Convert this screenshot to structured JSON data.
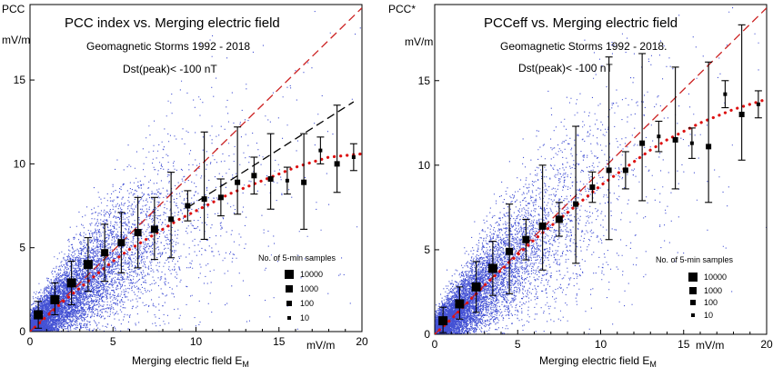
{
  "chart_data": [
    {
      "type": "scatter",
      "title": "PCC index vs. Merging electric field",
      "subtitle1": "Geomagnetic Storms 1992 - 2018",
      "subtitle2": "Dst(peak)< -100 nT",
      "ylabel": "PCC",
      "yunit": "mV/m",
      "xlabel_main": "Merging electric field  E",
      "xlabel_sub": "M",
      "xunit": "mV/m",
      "xlim": [
        0,
        20
      ],
      "ylim": [
        0,
        19.5
      ],
      "xticks": [
        0,
        5,
        10,
        15,
        20
      ],
      "yticks": [
        0,
        5,
        10,
        15
      ],
      "colors": {
        "scatter": "#2233cc",
        "linear_fit": "#cc2222",
        "saturation_fit": "#dd1111",
        "alt_fit": "#000000"
      },
      "legend": {
        "title": "No. of 5-min samples",
        "entries": [
          "10000",
          "1000",
          "100",
          "10"
        ],
        "marker_sizes": [
          10,
          8,
          6,
          4
        ]
      },
      "binned_means": [
        {
          "x": 0.5,
          "y": 1.0,
          "lo": 0.2,
          "hi": 1.8,
          "n": 10000
        },
        {
          "x": 1.5,
          "y": 1.9,
          "lo": 1.0,
          "hi": 2.9,
          "n": 10000
        },
        {
          "x": 2.5,
          "y": 2.9,
          "lo": 1.6,
          "hi": 4.2,
          "n": 10000
        },
        {
          "x": 3.5,
          "y": 4.0,
          "lo": 2.4,
          "hi": 5.6,
          "n": 10000
        },
        {
          "x": 4.5,
          "y": 4.7,
          "lo": 3.0,
          "hi": 6.4,
          "n": 1000
        },
        {
          "x": 5.5,
          "y": 5.3,
          "lo": 3.5,
          "hi": 7.1,
          "n": 1000
        },
        {
          "x": 6.5,
          "y": 5.9,
          "lo": 3.8,
          "hi": 8.0,
          "n": 1000
        },
        {
          "x": 7.5,
          "y": 6.1,
          "lo": 4.3,
          "hi": 8.0,
          "n": 1000
        },
        {
          "x": 8.5,
          "y": 6.7,
          "lo": 4.4,
          "hi": 9.5,
          "n": 100
        },
        {
          "x": 9.5,
          "y": 7.5,
          "lo": 6.6,
          "hi": 8.4,
          "n": 100
        },
        {
          "x": 10.5,
          "y": 7.9,
          "lo": 5.5,
          "hi": 11.9,
          "n": 100
        },
        {
          "x": 11.5,
          "y": 8.0,
          "lo": 6.9,
          "hi": 9.1,
          "n": 100
        },
        {
          "x": 12.5,
          "y": 8.9,
          "lo": 7.0,
          "hi": 12.2,
          "n": 100
        },
        {
          "x": 13.5,
          "y": 9.3,
          "lo": 8.2,
          "hi": 10.4,
          "n": 100
        },
        {
          "x": 14.5,
          "y": 9.1,
          "lo": 7.3,
          "hi": 11.8,
          "n": 100
        },
        {
          "x": 15.5,
          "y": 9.0,
          "lo": 8.2,
          "hi": 9.8,
          "n": 10
        },
        {
          "x": 16.5,
          "y": 8.9,
          "lo": 6.1,
          "hi": 11.8,
          "n": 100
        },
        {
          "x": 17.5,
          "y": 10.8,
          "lo": 10.0,
          "hi": 11.6,
          "n": 10
        },
        {
          "x": 18.5,
          "y": 10.0,
          "lo": 8.3,
          "hi": 13.5,
          "n": 100
        },
        {
          "x": 19.5,
          "y": 10.4,
          "lo": 9.6,
          "hi": 11.2,
          "n": 10
        }
      ],
      "linear_fit": {
        "x": [
          0,
          20
        ],
        "y": [
          0,
          19.3
        ]
      },
      "alt_fit": {
        "x": [
          9.5,
          19.5
        ],
        "y": [
          7.4,
          13.7
        ]
      },
      "saturation_fit": {
        "x": [
          0,
          1,
          2,
          3,
          4,
          5,
          6,
          7,
          8,
          9,
          10,
          11,
          12,
          13,
          14,
          15,
          16,
          17,
          18,
          19,
          20
        ],
        "y": [
          0,
          0.9,
          1.8,
          2.6,
          3.4,
          4.2,
          4.9,
          5.5,
          6.1,
          6.7,
          7.2,
          7.7,
          8.2,
          8.6,
          9.0,
          9.4,
          9.8,
          10.1,
          10.4,
          10.5,
          10.6
        ]
      }
    },
    {
      "type": "scatter",
      "title": "PCCeff vs. Merging electric field",
      "subtitle1": "Geomagnetic Storms 1992 - 2018.",
      "subtitle2": "Dst(peak)< -100 nT",
      "ylabel": "PCC*",
      "yunit": "mV/m",
      "xlabel_main": "Merging electric field  E",
      "xlabel_sub": "M",
      "xunit": "mV/m",
      "xlim": [
        0,
        20
      ],
      "ylim": [
        0,
        19.5
      ],
      "xticks": [
        0,
        5,
        10,
        15,
        20
      ],
      "yticks": [
        0,
        5,
        10,
        15
      ],
      "colors": {
        "scatter": "#2233cc",
        "linear_fit": "#cc2222",
        "saturation_fit": "#dd1111"
      },
      "legend": {
        "title": "No. of 5-min samples",
        "entries": [
          "10000",
          "1000",
          "100",
          "10"
        ],
        "marker_sizes": [
          10,
          8,
          6,
          4
        ]
      },
      "binned_means": [
        {
          "x": 0.5,
          "y": 0.8,
          "lo": 0.1,
          "hi": 1.6,
          "n": 10000
        },
        {
          "x": 1.5,
          "y": 1.8,
          "lo": 0.9,
          "hi": 2.8,
          "n": 10000
        },
        {
          "x": 2.5,
          "y": 2.8,
          "lo": 1.3,
          "hi": 4.3,
          "n": 10000
        },
        {
          "x": 3.5,
          "y": 3.9,
          "lo": 2.3,
          "hi": 5.5,
          "n": 10000
        },
        {
          "x": 4.5,
          "y": 4.9,
          "lo": 2.4,
          "hi": 7.7,
          "n": 1000
        },
        {
          "x": 5.5,
          "y": 5.6,
          "lo": 4.4,
          "hi": 6.8,
          "n": 1000
        },
        {
          "x": 6.5,
          "y": 6.4,
          "lo": 3.8,
          "hi": 10.0,
          "n": 1000
        },
        {
          "x": 7.5,
          "y": 6.8,
          "lo": 5.8,
          "hi": 7.8,
          "n": 1000
        },
        {
          "x": 8.5,
          "y": 7.7,
          "lo": 4.2,
          "hi": 12.3,
          "n": 100
        },
        {
          "x": 9.5,
          "y": 8.7,
          "lo": 7.8,
          "hi": 9.6,
          "n": 100
        },
        {
          "x": 10.5,
          "y": 9.7,
          "lo": 5.6,
          "hi": 16.4,
          "n": 100
        },
        {
          "x": 11.5,
          "y": 9.7,
          "lo": 8.6,
          "hi": 10.8,
          "n": 100
        },
        {
          "x": 12.5,
          "y": 11.3,
          "lo": 7.9,
          "hi": 16.6,
          "n": 100
        },
        {
          "x": 13.5,
          "y": 11.7,
          "lo": 10.8,
          "hi": 12.6,
          "n": 10
        },
        {
          "x": 14.5,
          "y": 11.5,
          "lo": 8.6,
          "hi": 15.8,
          "n": 100
        },
        {
          "x": 15.5,
          "y": 11.3,
          "lo": 10.4,
          "hi": 12.2,
          "n": 10
        },
        {
          "x": 16.5,
          "y": 11.1,
          "lo": 7.8,
          "hi": 16.1,
          "n": 100
        },
        {
          "x": 17.5,
          "y": 14.2,
          "lo": 13.4,
          "hi": 15.0,
          "n": 10
        },
        {
          "x": 18.5,
          "y": 13.0,
          "lo": 10.3,
          "hi": 18.3,
          "n": 100
        },
        {
          "x": 19.5,
          "y": 13.6,
          "lo": 12.8,
          "hi": 14.4,
          "n": 10
        }
      ],
      "linear_fit": {
        "x": [
          0,
          20
        ],
        "y": [
          0,
          19.3
        ]
      },
      "saturation_fit": {
        "x": [
          0,
          1,
          2,
          3,
          4,
          5,
          6,
          7,
          8,
          9,
          10,
          11,
          12,
          13,
          14,
          15,
          16,
          17,
          18,
          19,
          20
        ],
        "y": [
          0,
          0.9,
          1.9,
          2.9,
          3.8,
          4.7,
          5.6,
          6.4,
          7.2,
          8.0,
          8.8,
          9.5,
          10.2,
          10.9,
          11.5,
          12.0,
          12.5,
          12.9,
          13.3,
          13.6,
          13.9
        ]
      }
    }
  ]
}
